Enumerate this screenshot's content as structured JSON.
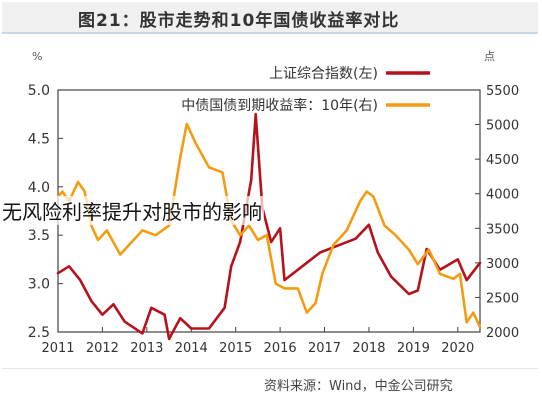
{
  "header": {
    "title": "图21：股市走势和10年国债收益率对比"
  },
  "overlay_text": "无风险利率提升对股市的影响",
  "source": "资料来源：Wind，中金公司研究",
  "colors": {
    "index_line": "#b5121b",
    "yield_line": "#f39c12",
    "axis": "#444444"
  },
  "chart_data": {
    "type": "line",
    "y_left": {
      "unit": "%",
      "ticks": [
        "2.5",
        "3.0",
        "3.5",
        "4.0",
        "4.5",
        "5.0"
      ],
      "range": [
        2.5,
        5.0
      ]
    },
    "y_right": {
      "unit": "点",
      "ticks": [
        "2000",
        "2500",
        "3000",
        "3500",
        "4000",
        "4500",
        "5000",
        "5500"
      ],
      "range": [
        2000,
        5500
      ]
    },
    "x": {
      "range": [
        2011.0,
        2020.5
      ],
      "tick_years": [
        "2011",
        "2012",
        "2013",
        "2014",
        "2015",
        "2016",
        "2017",
        "2018",
        "2019",
        "2020"
      ]
    },
    "series": [
      {
        "name": "上证综合指数(左)",
        "axis": "right",
        "points": [
          [
            2011.0,
            2850
          ],
          [
            2011.25,
            2950
          ],
          [
            2011.5,
            2750
          ],
          [
            2011.75,
            2450
          ],
          [
            2012.0,
            2250
          ],
          [
            2012.25,
            2400
          ],
          [
            2012.5,
            2150
          ],
          [
            2012.9,
            1980
          ],
          [
            2013.1,
            2350
          ],
          [
            2013.4,
            2250
          ],
          [
            2013.5,
            1900
          ],
          [
            2013.75,
            2200
          ],
          [
            2014.0,
            2050
          ],
          [
            2014.4,
            2050
          ],
          [
            2014.75,
            2350
          ],
          [
            2014.9,
            2950
          ],
          [
            2015.1,
            3300
          ],
          [
            2015.35,
            4200
          ],
          [
            2015.45,
            5150
          ],
          [
            2015.6,
            3800
          ],
          [
            2015.8,
            3300
          ],
          [
            2016.0,
            3500
          ],
          [
            2016.1,
            2750
          ],
          [
            2016.5,
            2950
          ],
          [
            2016.9,
            3150
          ],
          [
            2017.3,
            3250
          ],
          [
            2017.7,
            3350
          ],
          [
            2018.0,
            3550
          ],
          [
            2018.2,
            3150
          ],
          [
            2018.5,
            2800
          ],
          [
            2018.9,
            2550
          ],
          [
            2019.1,
            2600
          ],
          [
            2019.3,
            3200
          ],
          [
            2019.6,
            2900
          ],
          [
            2020.0,
            3050
          ],
          [
            2020.2,
            2750
          ],
          [
            2020.5,
            3000
          ]
        ]
      },
      {
        "name": "中债国债到期收益率：10年(右)",
        "axis": "left",
        "points": [
          [
            2011.0,
            3.9
          ],
          [
            2011.1,
            3.95
          ],
          [
            2011.25,
            3.85
          ],
          [
            2011.45,
            4.05
          ],
          [
            2011.6,
            3.95
          ],
          [
            2011.75,
            3.6
          ],
          [
            2011.9,
            3.45
          ],
          [
            2012.1,
            3.55
          ],
          [
            2012.4,
            3.3
          ],
          [
            2012.6,
            3.4
          ],
          [
            2012.9,
            3.55
          ],
          [
            2013.2,
            3.5
          ],
          [
            2013.5,
            3.6
          ],
          [
            2013.75,
            4.3
          ],
          [
            2013.9,
            4.65
          ],
          [
            2014.1,
            4.45
          ],
          [
            2014.4,
            4.2
          ],
          [
            2014.7,
            4.15
          ],
          [
            2014.9,
            3.65
          ],
          [
            2015.1,
            3.5
          ],
          [
            2015.3,
            3.6
          ],
          [
            2015.5,
            3.45
          ],
          [
            2015.7,
            3.5
          ],
          [
            2015.9,
            3.0
          ],
          [
            2016.1,
            2.95
          ],
          [
            2016.4,
            2.95
          ],
          [
            2016.6,
            2.7
          ],
          [
            2016.8,
            2.8
          ],
          [
            2016.95,
            3.1
          ],
          [
            2017.2,
            3.4
          ],
          [
            2017.5,
            3.55
          ],
          [
            2017.8,
            3.85
          ],
          [
            2017.95,
            3.95
          ],
          [
            2018.1,
            3.9
          ],
          [
            2018.35,
            3.6
          ],
          [
            2018.6,
            3.5
          ],
          [
            2018.9,
            3.35
          ],
          [
            2019.1,
            3.2
          ],
          [
            2019.35,
            3.35
          ],
          [
            2019.6,
            3.1
          ],
          [
            2019.9,
            3.05
          ],
          [
            2020.05,
            3.1
          ],
          [
            2020.2,
            2.6
          ],
          [
            2020.35,
            2.7
          ],
          [
            2020.5,
            2.55
          ]
        ]
      }
    ]
  }
}
